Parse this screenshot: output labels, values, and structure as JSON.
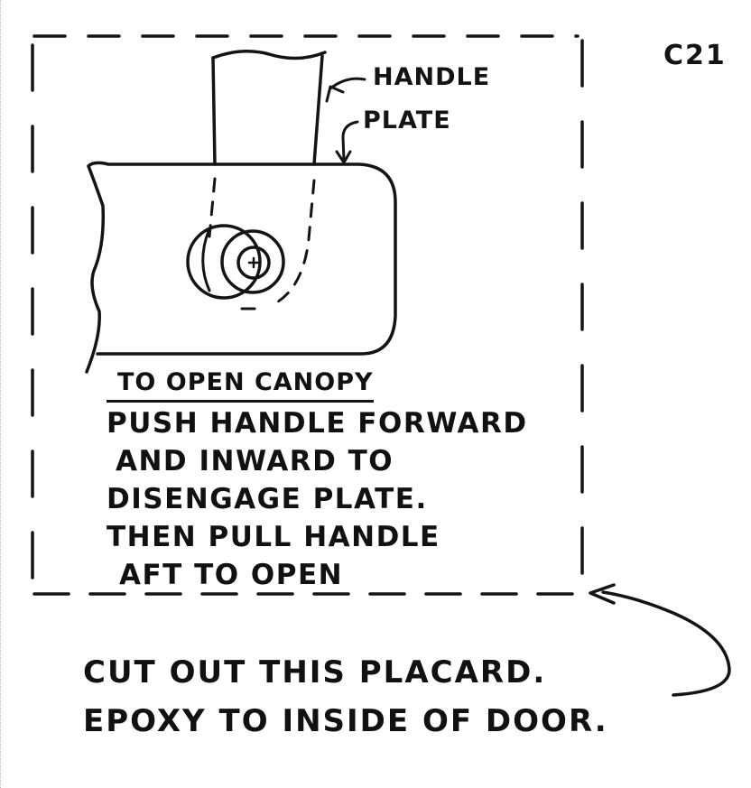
{
  "page_id": "C21",
  "labels": {
    "handle": "HANDLE",
    "plate": "PLATE"
  },
  "placard": {
    "heading": "TO OPEN CANOPY",
    "lines": [
      "PUSH HANDLE FORWARD",
      "AND INWARD TO",
      "DISENGAGE PLATE.",
      "THEN PULL HANDLE",
      "AFT TO OPEN"
    ]
  },
  "note": {
    "lines": [
      "CUT OUT THIS PLACARD.",
      "EPOXY TO INSIDE OF DOOR."
    ]
  },
  "colors": {
    "ink": "#141414",
    "paper": "#ffffff"
  }
}
